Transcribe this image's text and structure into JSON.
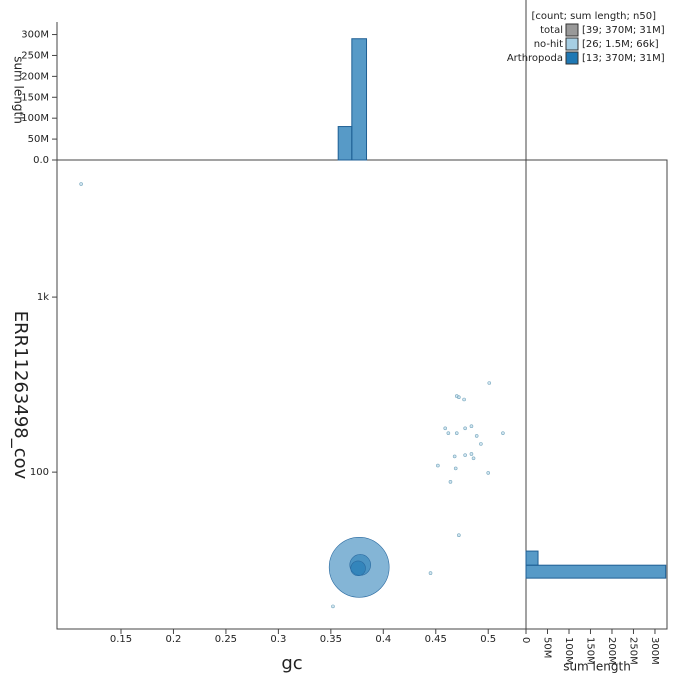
{
  "chart_data": [
    {
      "type": "scatter",
      "xlabel": "gc",
      "ylabel": "ERR11263498_cov",
      "xlim": [
        0.089,
        0.536
      ],
      "ylim": [
        12.7,
        6070
      ],
      "log_y": true,
      "xticks": [
        0.15,
        0.2,
        0.25,
        0.3,
        0.35,
        0.4,
        0.45,
        0.5
      ],
      "yticks": [
        100,
        {
          "value": 1000,
          "label": "1k"
        }
      ],
      "series": [
        {
          "name": "no-hit",
          "color": "#a6cee3",
          "x": [
            0.112,
            0.352,
            0.445,
            0.472,
            0.47,
            0.472,
            0.477,
            0.501,
            0.459,
            0.462,
            0.47,
            0.478,
            0.484,
            0.489,
            0.514,
            0.493,
            0.468,
            0.478,
            0.484,
            0.486,
            0.452,
            0.469,
            0.5,
            0.464
          ],
          "values": [
            4424,
            17.1,
            26.5,
            43.6,
            272,
            268,
            260,
            323,
            178,
            167,
            167,
            178,
            183,
            161,
            167,
            145,
            123,
            125,
            127,
            120,
            109,
            105,
            99,
            88
          ],
          "sizes": [
            60000,
            60000,
            60000,
            60000,
            150000,
            60000,
            60000,
            60000,
            150000,
            200000,
            60000,
            60000,
            60000,
            60000,
            60000,
            60000,
            60000,
            60000,
            60000,
            60000,
            60000,
            60000,
            60000,
            60000
          ]
        },
        {
          "name": "Arthropoda",
          "color": "#1f78b4",
          "x": [
            0.377,
            0.378,
            0.376
          ],
          "values": [
            28.6,
            29.5,
            28.2
          ],
          "sizes": [
            330000000,
            40000000,
            20000000
          ]
        }
      ],
      "legend": {
        "title": "[count; sum length; n50]",
        "total": {
          "name": "total",
          "color": "#999999",
          "label": "[39; 370M; 31M]"
        },
        "labels": [
          "[26; 1.5M; 66k]",
          "[13; 370M; 31M]"
        ]
      }
    },
    {
      "type": "histogram",
      "ylabel": "sum length",
      "color": "#1f78b4",
      "bins": [
        0.357,
        0.37,
        0.384
      ],
      "values": [
        80000000,
        290000000
      ],
      "ylim": [
        0,
        330000000
      ],
      "yticks": [
        {
          "value": 0,
          "label": "0.0"
        },
        {
          "value": 50000000,
          "label": "50M"
        },
        {
          "value": 100000000,
          "label": "100M"
        },
        {
          "value": 150000000,
          "label": "150M"
        },
        {
          "value": 200000000,
          "label": "200M"
        },
        {
          "value": 250000000,
          "label": "250M"
        },
        {
          "value": 300000000,
          "label": "300M"
        }
      ]
    },
    {
      "type": "histogram",
      "xlabel": "sum length",
      "color": "#1f78b4",
      "bins": [
        24.8,
        29.4,
        35.4
      ],
      "values": [
        325000000,
        28000000
      ],
      "xlim": [
        0,
        328000000
      ],
      "xticks": [
        0,
        {
          "value": 50000000,
          "label": "50M"
        },
        {
          "value": 100000000,
          "label": "100M"
        },
        {
          "value": 150000000,
          "label": "150M"
        },
        {
          "value": 200000000,
          "label": "200M"
        },
        {
          "value": 250000000,
          "label": "250M"
        },
        {
          "value": 300000000,
          "label": "300M"
        }
      ]
    }
  ]
}
